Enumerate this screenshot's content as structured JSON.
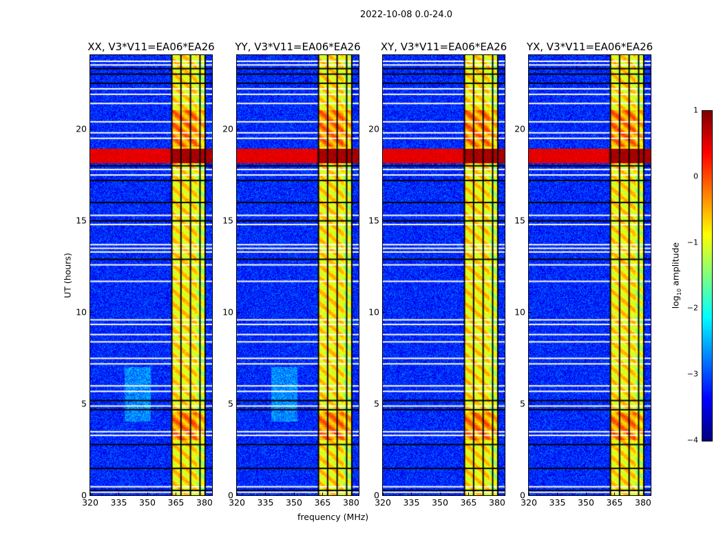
{
  "suptitle": "2022-10-08 0.0-24.0",
  "chart_data": {
    "type": "heatmap",
    "panels": [
      {
        "title": "XX, V3*V11=EA06*EA26",
        "pol": "XX"
      },
      {
        "title": "YY, V3*V11=EA06*EA26",
        "pol": "YY"
      },
      {
        "title": "XY, V3*V11=EA06*EA26",
        "pol": "XY"
      },
      {
        "title": "YX, V3*V11=EA06*EA26",
        "pol": "YX"
      }
    ],
    "xlabel": "frequency (MHz)",
    "ylabel": "UT (hours)",
    "xlim": [
      320,
      384
    ],
    "ylim": [
      0,
      24
    ],
    "xticks": [
      "320",
      "335",
      "350",
      "365",
      "380"
    ],
    "xtick_values": [
      320,
      335,
      350,
      365,
      380
    ],
    "yticks": [
      "0",
      "5",
      "10",
      "15",
      "20"
    ],
    "ytick_values": [
      0,
      5,
      10,
      15,
      20
    ],
    "colormap": "jet",
    "colorbar": {
      "label": "log10 amplitude",
      "label_main": "log",
      "label_sub": "10",
      "label_rest": " amplitude",
      "range": [
        -4,
        1
      ],
      "ticks": [
        "1",
        "0",
        "−1",
        "−2",
        "−3",
        "−4"
      ],
      "tick_values": [
        1,
        0,
        -1,
        -2,
        -3,
        -4
      ]
    },
    "background_level": -3.2,
    "strong_band_mhz": [
      362.5,
      380
    ],
    "strong_band_level": -0.8,
    "band_gap_channels_mhz": [
      362.5,
      367.3,
      372.3,
      377.3,
      380
    ],
    "rfi_burst_hours": [
      18.1,
      18.9
    ],
    "rfi_burst_level": 0.5,
    "flagged_white_hours": [
      23.5,
      23.7,
      22.2,
      21.9,
      21.4,
      20.4,
      19.8,
      19.5,
      17.8,
      17.5,
      15.3,
      14.8,
      13.7,
      13.5,
      13.3,
      12.6,
      11.7,
      9.6,
      9.35,
      8.8,
      8.4,
      7.5,
      7.2,
      6.0,
      5.7,
      4.9,
      3.5,
      3.3,
      0.5,
      0.2
    ],
    "flagged_black_hours": [
      23.3,
      23.0,
      22.5,
      18.0,
      17.2,
      16.0,
      15.0,
      12.9,
      5.2,
      4.7,
      2.8,
      1.5,
      0.3
    ]
  }
}
